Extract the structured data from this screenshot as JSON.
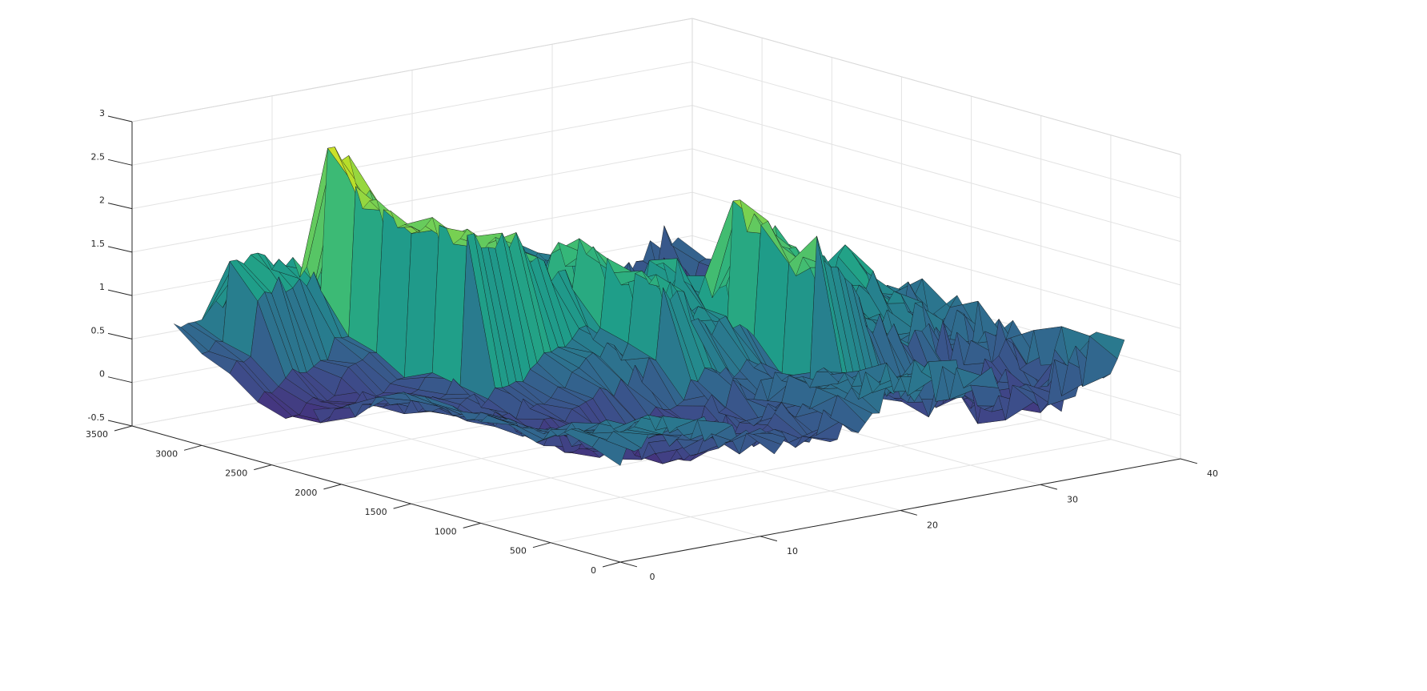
{
  "chart_data": {
    "type": "surface",
    "title": "",
    "xlabel": "",
    "ylabel": "",
    "zlabel": "",
    "colormap": "viridis",
    "grid": true,
    "box": true,
    "xlim": [
      0,
      40
    ],
    "ylim": [
      0,
      3500
    ],
    "zlim": [
      -0.5,
      3
    ],
    "x_ticks": [
      0,
      10,
      20,
      30,
      40
    ],
    "x_tick_labels": [
      "0",
      "10",
      "20",
      "30",
      "40"
    ],
    "y_ticks": [
      0,
      500,
      1000,
      1500,
      2000,
      2500,
      3000,
      3500
    ],
    "y_tick_labels": [
      "0",
      "500",
      "1000",
      "1500",
      "2000",
      "2500",
      "3000",
      "3500"
    ],
    "z_ticks": [
      -0.5,
      0,
      0.5,
      1,
      1.5,
      2,
      2.5,
      3
    ],
    "z_tick_labels": [
      "-0.5",
      "0",
      "0.5",
      "1",
      "1.5",
      "2",
      "2.5",
      "3"
    ],
    "series": [
      {
        "x_range": [
          0,
          36
        ],
        "y_levels": [
          0,
          1,
          2,
          3,
          4,
          5,
          6,
          7,
          8,
          9,
          10,
          11,
          12,
          13,
          14,
          15,
          16
        ],
        "y_step": 200
      },
      {
        "step_edges": [
          {
            "x": 2,
            "y_from": 3100,
            "y_to": 2700,
            "z_before": 0.85,
            "z_after": 1.55
          },
          {
            "x": 7,
            "y_from": 2900,
            "y_to": 1700,
            "z_before": 0.6,
            "z_after": 2.25
          },
          {
            "x": 15,
            "y_from": 2000,
            "y_to": 1200,
            "z_before": 0.9,
            "z_after": 1.65
          },
          {
            "x": 22,
            "y_from": 1500,
            "y_to": 800,
            "z_before": 1.0,
            "z_after": 2.6
          },
          {
            "x": 20,
            "y_from": 1900,
            "y_to": 1600,
            "z_before": 1.3,
            "z_after": 1.95
          }
        ]
      }
    ],
    "z_min_value": -0.35,
    "z_max_value": 2.8
  }
}
